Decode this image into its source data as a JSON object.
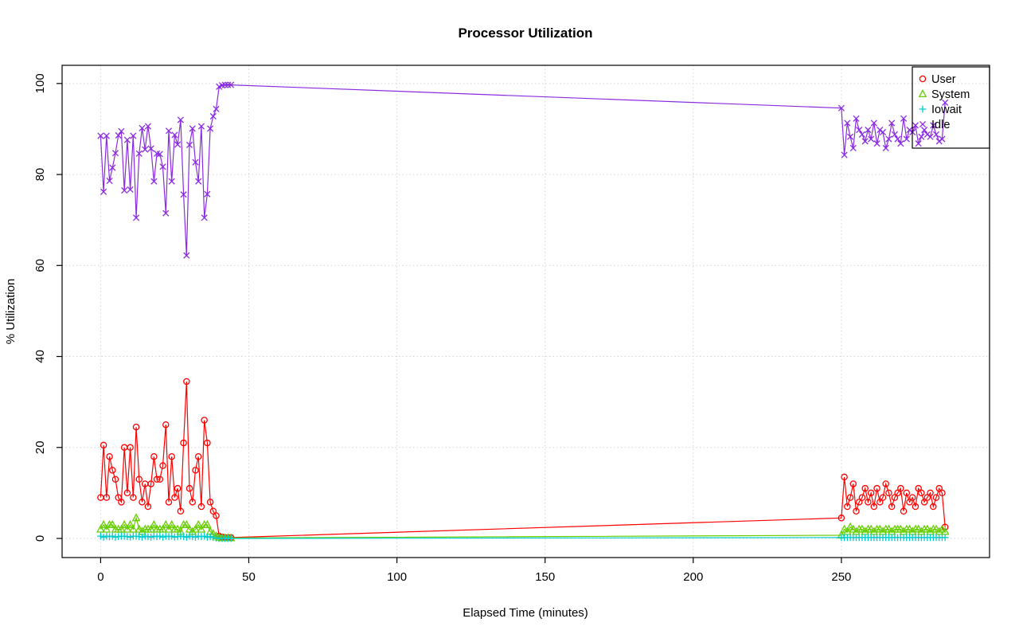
{
  "chart_data": {
    "type": "line",
    "title": "Processor Utilization",
    "xlabel": "Elapsed Time (minutes)",
    "ylabel": "% Utilization",
    "x_ticks": [
      0,
      50,
      100,
      150,
      200,
      250
    ],
    "y_ticks": [
      0,
      20,
      40,
      60,
      80,
      100
    ],
    "xlim": [
      -13,
      300
    ],
    "ylim": [
      -4.2,
      104
    ],
    "grid": true,
    "grid_style": "dotted",
    "grid_color": "#d4d4d4",
    "legend_position": "top-right",
    "x": [
      0,
      1,
      2,
      3,
      4,
      5,
      6,
      7,
      8,
      9,
      10,
      11,
      12,
      13,
      14,
      15,
      16,
      17,
      18,
      19,
      20,
      21,
      22,
      23,
      24,
      25,
      26,
      27,
      28,
      29,
      30,
      31,
      32,
      33,
      34,
      35,
      36,
      37,
      38,
      39,
      40,
      41,
      42,
      43,
      44,
      250,
      251,
      252,
      253,
      254,
      255,
      256,
      257,
      258,
      259,
      260,
      261,
      262,
      263,
      264,
      265,
      266,
      267,
      268,
      269,
      270,
      271,
      272,
      273,
      274,
      275,
      276,
      277,
      278,
      279,
      280,
      281,
      282,
      283,
      284,
      285
    ],
    "series": [
      {
        "name": "User",
        "color": "#FF0000",
        "marker": "circle",
        "values": [
          9,
          20.5,
          9,
          18,
          15,
          13,
          9,
          8,
          20,
          10,
          20,
          9,
          24.5,
          13,
          8,
          12,
          7,
          12,
          18,
          13,
          13,
          16,
          25,
          8,
          18,
          9,
          11,
          6,
          21,
          34.5,
          11,
          8,
          15,
          18,
          7,
          26,
          21,
          8,
          6,
          5,
          0.5,
          0.3,
          0.2,
          0.2,
          0.2,
          4.5,
          13.5,
          7,
          9,
          12,
          6,
          8,
          9,
          11,
          8,
          10,
          7,
          11,
          8,
          9,
          12,
          10,
          7,
          9,
          10,
          11,
          6,
          10,
          8,
          9,
          7,
          11,
          10,
          8,
          9,
          10,
          7,
          9,
          11,
          10,
          2.5
        ]
      },
      {
        "name": "System",
        "color": "#66CD00",
        "marker": "triangle",
        "values": [
          2,
          3,
          2,
          3,
          3,
          2,
          2,
          2,
          3,
          2,
          3,
          2,
          4.5,
          2,
          1.5,
          2,
          2,
          2,
          3,
          2,
          2,
          2,
          3,
          2,
          3,
          2,
          2,
          1.5,
          3,
          3,
          2,
          1.5,
          2,
          3,
          2,
          3,
          3,
          1.5,
          1,
          0.5,
          0.2,
          0.1,
          0.1,
          0.1,
          0.1,
          0.7,
          2,
          1.5,
          2.5,
          2,
          1.5,
          2,
          2,
          1.5,
          2,
          2,
          1.5,
          2,
          2,
          1.5,
          2,
          2,
          1.5,
          2,
          2,
          2,
          1.5,
          2,
          2,
          1.5,
          2,
          2,
          1.5,
          2,
          2,
          1.5,
          2,
          2,
          1.5,
          2,
          1.5
        ]
      },
      {
        "name": "Iowait",
        "color": "#00CDCD",
        "marker": "plus",
        "values": [
          0.5,
          0.3,
          0.5,
          0.4,
          0.5,
          0.3,
          0.4,
          0.5,
          0.5,
          0.4,
          0.3,
          0.5,
          0.5,
          0.4,
          0.3,
          0.5,
          0.4,
          0.3,
          0.5,
          0.4,
          0.5,
          0.3,
          0.5,
          0.4,
          0.5,
          0.3,
          0.4,
          0.5,
          0.4,
          0.3,
          0.5,
          0.4,
          0.3,
          0.5,
          0.4,
          0.5,
          0.3,
          0.4,
          0.2,
          0.1,
          0,
          0,
          0,
          0,
          0,
          0.2,
          0.2,
          0.2,
          0.2,
          0.2,
          0.2,
          0.2,
          0.2,
          0.2,
          0.2,
          0.2,
          0.2,
          0.2,
          0.2,
          0.2,
          0.2,
          0.2,
          0.2,
          0.2,
          0.2,
          0.2,
          0.2,
          0.2,
          0.2,
          0.2,
          0.2,
          0.2,
          0.2,
          0.2,
          0.2,
          0.2,
          0.2,
          0.2,
          0.2,
          0.2,
          0.2
        ]
      },
      {
        "name": "Idle",
        "color": "#8A2BE2",
        "marker": "x",
        "values": [
          88.5,
          76.2,
          88.5,
          78.6,
          81.5,
          84.7,
          88.6,
          89.5,
          76.5,
          87.6,
          76.7,
          88.5,
          70.5,
          84.6,
          90.2,
          85.5,
          90.6,
          85.7,
          78.5,
          84.6,
          84.5,
          81.7,
          71.5,
          89.6,
          78.5,
          88.7,
          86.6,
          92,
          75.6,
          62.2,
          86.5,
          90.1,
          82.7,
          78.5,
          90.6,
          70.5,
          75.7,
          90.1,
          92.8,
          94.4,
          99.3,
          99.6,
          99.7,
          99.7,
          99.7,
          94.6,
          84.3,
          91.3,
          88.3,
          85.8,
          92.3,
          89.8,
          88.8,
          87.3,
          89.8,
          87.8,
          91.3,
          86.8,
          89.8,
          89.3,
          85.8,
          87.8,
          91.3,
          88.8,
          87.8,
          86.8,
          92.3,
          87.8,
          89.8,
          89.3,
          90.8,
          86.8,
          88.3,
          89.8,
          88.8,
          88.3,
          90.8,
          88.8,
          87.3,
          87.8,
          95.8
        ]
      }
    ]
  }
}
